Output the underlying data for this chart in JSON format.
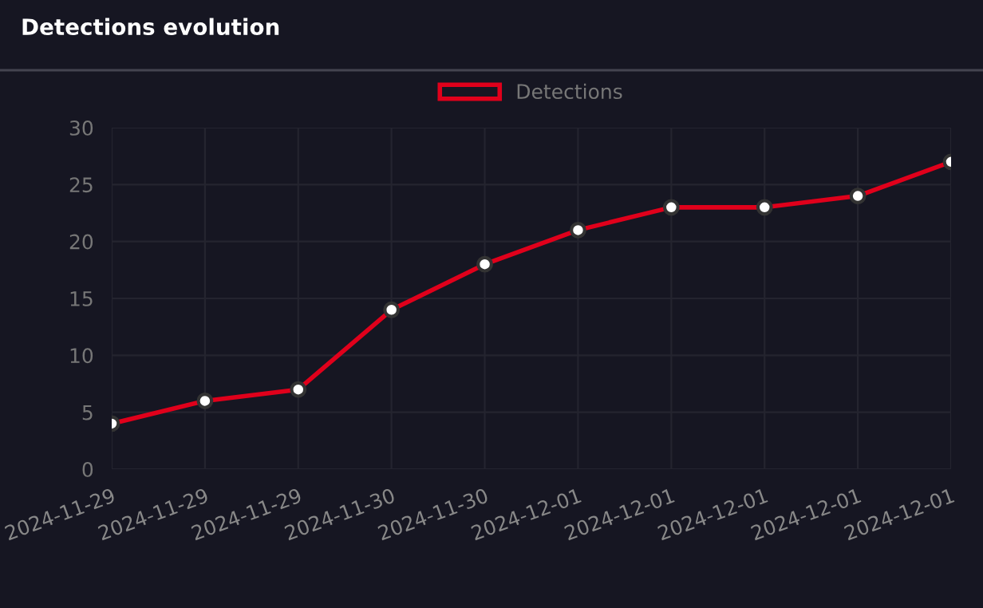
{
  "chart_data": {
    "type": "line",
    "title": "Detections evolution",
    "categories": [
      "2024-11-29",
      "2024-11-29",
      "2024-11-29",
      "2024-11-30",
      "2024-11-30",
      "2024-12-01",
      "2024-12-01",
      "2024-12-01",
      "2024-12-01",
      "2024-12-01"
    ],
    "series": [
      {
        "name": "Detections",
        "color": "#e0001b",
        "values": [
          4,
          6,
          7,
          14,
          18,
          21,
          23,
          23,
          24,
          27
        ]
      }
    ],
    "ylim": [
      0,
      30
    ],
    "yticks": [
      0,
      5,
      10,
      15,
      20,
      25,
      30
    ],
    "grid": true,
    "legend": "top",
    "marker": "circle",
    "line_style": "solid"
  }
}
